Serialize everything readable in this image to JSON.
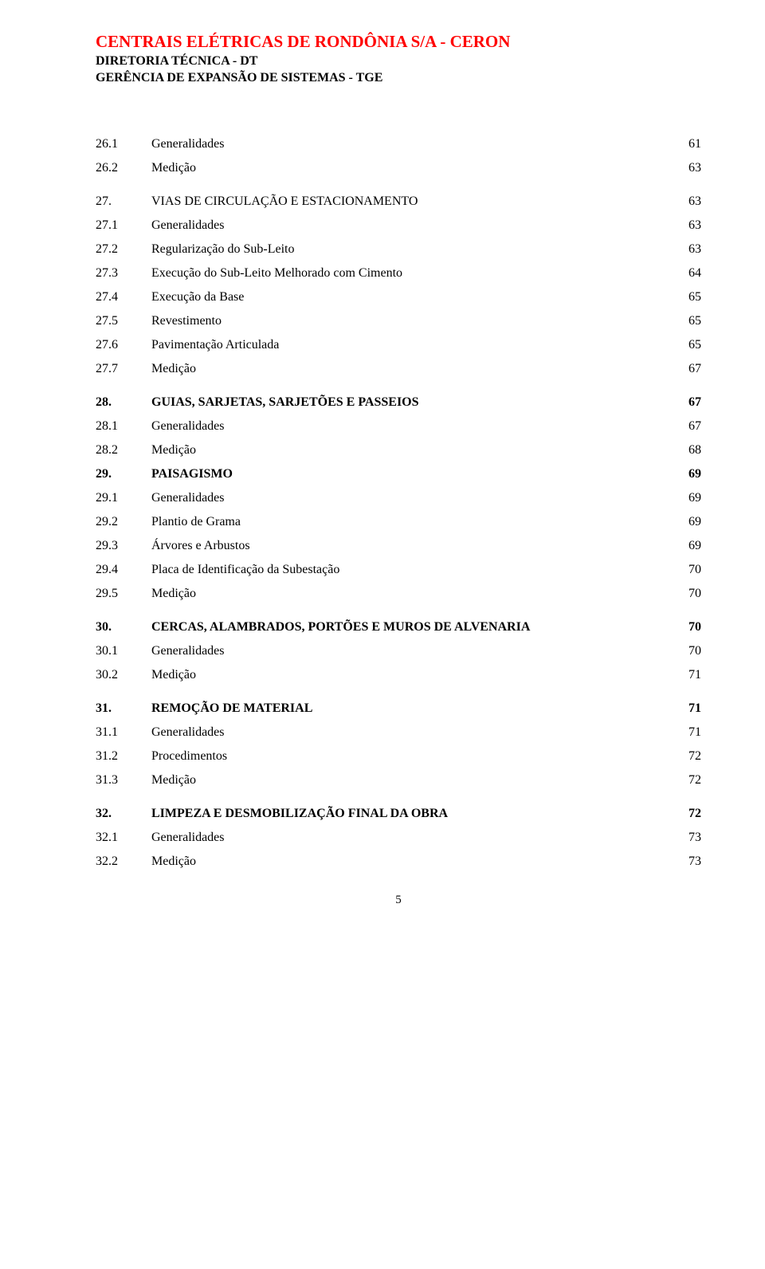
{
  "header": {
    "title": "CENTRAIS ELÉTRICAS DE RONDÔNIA S/A - CERON",
    "line1": "DIRETORIA TÉCNICA - DT",
    "line2": "GERÊNCIA DE EXPANSÃO DE SISTEMAS - TGE"
  },
  "toc": [
    {
      "num": "26.1",
      "label": "Generalidades",
      "page": "61",
      "bold": false,
      "gap": false
    },
    {
      "num": "26.2",
      "label": "Medição",
      "page": "63",
      "bold": false,
      "gap": false
    },
    {
      "num": "27.",
      "label": "VIAS DE CIRCULAÇÃO E ESTACIONAMENTO",
      "page": "63",
      "bold": false,
      "gap": true
    },
    {
      "num": "27.1",
      "label": "Generalidades",
      "page": "63",
      "bold": false,
      "gap": false
    },
    {
      "num": "27.2",
      "label": "Regularização do Sub-Leito",
      "page": "63",
      "bold": false,
      "gap": false
    },
    {
      "num": "27.3",
      "label": "Execução do Sub-Leito Melhorado com Cimento",
      "page": "64",
      "bold": false,
      "gap": false
    },
    {
      "num": "27.4",
      "label": "Execução da Base",
      "page": "65",
      "bold": false,
      "gap": false
    },
    {
      "num": "27.5",
      "label": "Revestimento",
      "page": "65",
      "bold": false,
      "gap": false
    },
    {
      "num": "27.6",
      "label": "Pavimentação Articulada",
      "page": "65",
      "bold": false,
      "gap": false
    },
    {
      "num": "27.7",
      "label": "Medição",
      "page": "67",
      "bold": false,
      "gap": false
    },
    {
      "num": "28.",
      "label": "GUIAS, SARJETAS, SARJETÕES E PASSEIOS",
      "page": "67",
      "bold": true,
      "gap": true
    },
    {
      "num": "28.1",
      "label": "Generalidades",
      "page": "67",
      "bold": false,
      "gap": false
    },
    {
      "num": "28.2",
      "label": "Medição",
      "page": "68",
      "bold": false,
      "gap": false
    },
    {
      "num": "29.",
      "label": "PAISAGISMO",
      "page": "69",
      "bold": true,
      "gap": false
    },
    {
      "num": "29.1",
      "label": "Generalidades",
      "page": "69",
      "bold": false,
      "gap": false
    },
    {
      "num": "29.2",
      "label": "Plantio de Grama",
      "page": "69",
      "bold": false,
      "gap": false
    },
    {
      "num": "29.3",
      "label": "Árvores e Arbustos",
      "page": "69",
      "bold": false,
      "gap": false
    },
    {
      "num": "29.4",
      "label": "Placa de Identificação da Subestação",
      "page": "70",
      "bold": false,
      "gap": false
    },
    {
      "num": "29.5",
      "label": "Medição",
      "page": "70",
      "bold": false,
      "gap": false
    },
    {
      "num": "30.",
      "label": "CERCAS, ALAMBRADOS, PORTÕES E MUROS DE ALVENARIA",
      "page": "70",
      "bold": true,
      "gap": true,
      "justify": true
    },
    {
      "num": "30.1",
      "label": "Generalidades",
      "page": "70",
      "bold": false,
      "gap": false
    },
    {
      "num": "30.2",
      "label": "Medição",
      "page": "71",
      "bold": false,
      "gap": false
    },
    {
      "num": "31.",
      "label": "REMOÇÃO DE MATERIAL",
      "page": "71",
      "bold": true,
      "gap": true
    },
    {
      "num": "31.1",
      "label": "Generalidades",
      "page": "71",
      "bold": false,
      "gap": false
    },
    {
      "num": "31.2",
      "label": "Procedimentos",
      "page": "72",
      "bold": false,
      "gap": false
    },
    {
      "num": "31.3",
      "label": "Medição",
      "page": "72",
      "bold": false,
      "gap": false
    },
    {
      "num": "32.",
      "label": "LIMPEZA E DESMOBILIZAÇÃO FINAL DA OBRA",
      "page": "72",
      "bold": true,
      "gap": true
    },
    {
      "num": "32.1",
      "label": "Generalidades",
      "page": "73",
      "bold": false,
      "gap": false
    },
    {
      "num": "32.2",
      "label": "Medição",
      "page": "73",
      "bold": false,
      "gap": false
    }
  ],
  "page_number": "5"
}
